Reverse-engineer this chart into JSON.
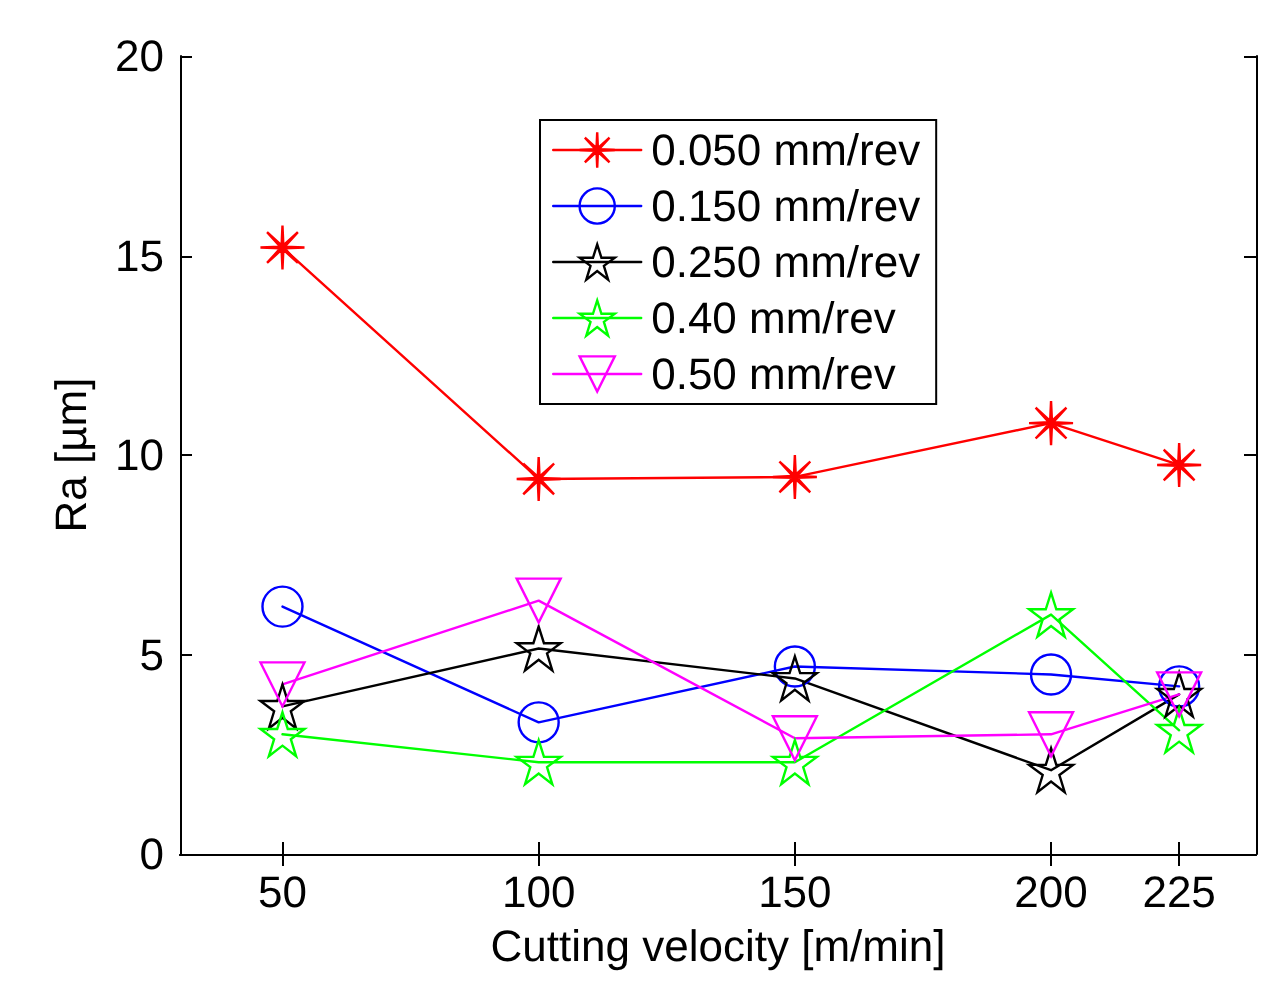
{
  "chart_data": {
    "type": "line",
    "xlabel": "Cutting velocity [m/min]",
    "ylabel": "Ra [µm]",
    "x": [
      50,
      100,
      150,
      200,
      225
    ],
    "xlim": [
      30,
      240
    ],
    "xticks": [
      50,
      100,
      150,
      200,
      225
    ],
    "ylim": [
      0,
      20
    ],
    "yticks": [
      0,
      5,
      10,
      15,
      20
    ],
    "grid": false,
    "legend": "top",
    "line_style": "solid",
    "series": [
      {
        "name": "0.050 mm/rev",
        "color": "#ff0000",
        "marker": "cross",
        "values": [
          15.2,
          9.4,
          9.45,
          10.8,
          9.75
        ]
      },
      {
        "name": "0.150 mm/rev",
        "color": "#0000ff",
        "marker": "circle",
        "values": [
          6.2,
          3.3,
          4.7,
          4.5,
          4.2
        ]
      },
      {
        "name": "0.250 mm/rev",
        "color": "#000000",
        "marker": "star",
        "values": [
          3.7,
          5.15,
          4.4,
          2.1,
          4.0
        ]
      },
      {
        "name": "0.40 mm/rev",
        "color": "#00ff00",
        "marker": "star",
        "values": [
          3.0,
          2.3,
          2.3,
          6.0,
          3.1
        ]
      },
      {
        "name": "0.50 mm/rev",
        "color": "#ff00ff",
        "marker": "triangle",
        "values": [
          4.25,
          6.35,
          2.9,
          3.0,
          4.0
        ]
      }
    ]
  }
}
